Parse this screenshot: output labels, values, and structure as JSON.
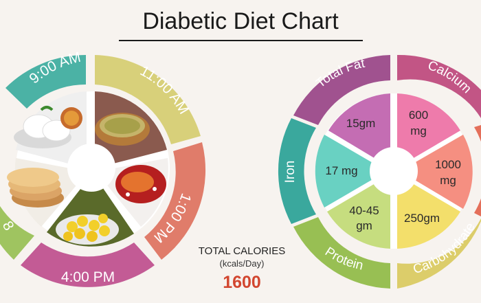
{
  "title": "Diabetic Diet Chart",
  "meal_times": [
    {
      "label": "9:00 AM",
      "food": "idli-and-sambar",
      "color": "#4bb2a5"
    },
    {
      "label": "11:00 AM",
      "food": "sprouts-bowl",
      "color": "#d8d07a"
    },
    {
      "label": "1:00 PM",
      "food": "fish-curry",
      "color": "#e07c6a"
    },
    {
      "label": "4:00 PM",
      "food": "jackfruit",
      "color": "#c35b95"
    },
    {
      "label": "8",
      "food": "chapati",
      "color": "#9fc460"
    }
  ],
  "calories": {
    "label": "TOTAL CALORIES",
    "unit": "(kcals/Day)",
    "value": "1600"
  },
  "nutrients": [
    {
      "name": "Total Fat",
      "value": "15gm",
      "ring_color": "#a0528f",
      "slice_color": "#c46db3"
    },
    {
      "name": "Calcium",
      "value": [
        "600",
        "mg"
      ],
      "ring_color": "#c25585",
      "slice_color": "#ee7bab"
    },
    {
      "name": "",
      "value": [
        "1000",
        "mg"
      ],
      "ring_color": "#e46f5a",
      "slice_color": "#f58f81"
    },
    {
      "name": "Carbohydrate",
      "value": "250gm",
      "ring_color": "#dccd6a",
      "slice_color": "#f3df6b"
    },
    {
      "name": "Protein",
      "value": [
        "40-45",
        "gm"
      ],
      "ring_color": "#98bf53",
      "slice_color": "#c6dd7f"
    },
    {
      "name": "Iron",
      "value": "17 mg",
      "ring_color": "#3aa89d",
      "slice_color": "#69d1c2"
    }
  ]
}
